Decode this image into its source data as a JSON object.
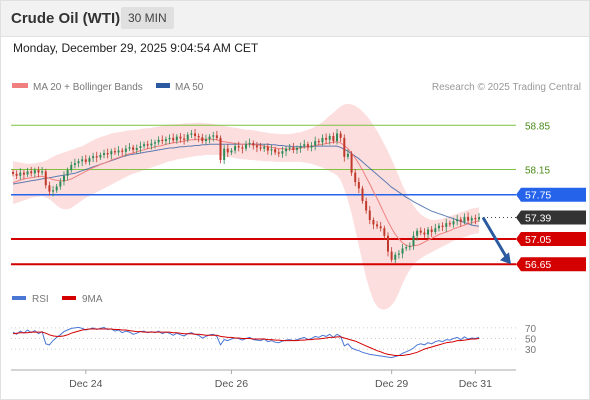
{
  "header": {
    "title": "Crude Oil (WTI)",
    "timeframe": "30 MIN",
    "datetime": "Monday, December 29, 2025 9:04:54 AM CET"
  },
  "legend": {
    "ma20": "MA 20 + Bollinger Bands",
    "ma50": "MA 50",
    "copyright": "Research © 2025 Trading Central",
    "rsi": "RSI",
    "rsi9": "9MA"
  },
  "colors": {
    "ma20": "#f08080",
    "ma50": "#2b5aa0",
    "bollinger_fill": "#fbd6d6",
    "up": "#2e8b57",
    "down": "#c0392b",
    "pivot": "#2563eb",
    "support": "#d40000",
    "resistance": "#7fc241",
    "rsi": "#4a77d4",
    "rsi_ma": "#d40000",
    "last_price": "#333333"
  },
  "chart_data": {
    "type": "candlestick",
    "x_ticks": [
      "Dec 24",
      "Dec 26",
      "Dec 29",
      "Dec 31"
    ],
    "price_levels": [
      {
        "value": 58.85,
        "label": "58.85",
        "kind": "resistance"
      },
      {
        "value": 58.15,
        "label": "58.15",
        "kind": "resistance"
      },
      {
        "value": 57.75,
        "label": "57.75",
        "kind": "pivot"
      },
      {
        "value": 57.39,
        "label": "57.39",
        "kind": "last"
      },
      {
        "value": 57.05,
        "label": "57.05",
        "kind": "support"
      },
      {
        "value": 56.65,
        "label": "56.65",
        "kind": "support"
      }
    ],
    "forecast_arrow": {
      "from": 57.39,
      "to": 56.65
    },
    "close": [
      58.08,
      58.05,
      58.1,
      58.07,
      58.12,
      58.09,
      58.14,
      58.1,
      58.12,
      57.9,
      57.8,
      57.82,
      57.88,
      57.96,
      58.05,
      58.14,
      58.22,
      58.25,
      58.28,
      58.31,
      58.27,
      58.33,
      58.36,
      58.34,
      58.38,
      58.41,
      58.39,
      58.44,
      58.42,
      58.45,
      58.43,
      58.48,
      58.5,
      58.46,
      58.49,
      58.52,
      58.55,
      58.53,
      58.56,
      58.58,
      58.62,
      58.6,
      58.63,
      58.65,
      58.61,
      58.67,
      58.64,
      58.62,
      58.7,
      58.72,
      58.68,
      58.66,
      58.6,
      58.63,
      58.67,
      58.69,
      58.65,
      58.3,
      58.48,
      58.42,
      58.45,
      58.52,
      58.5,
      58.48,
      58.55,
      58.57,
      58.53,
      58.5,
      58.48,
      58.51,
      58.45,
      58.47,
      58.42,
      58.4,
      58.44,
      58.48,
      58.5,
      58.46,
      58.49,
      58.52,
      58.55,
      58.5,
      58.53,
      58.6,
      58.58,
      58.65,
      58.62,
      58.68,
      58.6,
      58.72,
      58.65,
      58.35,
      58.4,
      58.1,
      57.95,
      57.85,
      57.65,
      57.5,
      57.35,
      57.28,
      57.25,
      57.22,
      57.1,
      56.85,
      56.72,
      56.8,
      56.82,
      56.9,
      56.92,
      56.94,
      57.1,
      57.18,
      57.15,
      57.12,
      57.2,
      57.16,
      57.22,
      57.26,
      57.24,
      57.3,
      57.28,
      57.33,
      57.36,
      57.32,
      57.4,
      57.34,
      57.38,
      57.36,
      57.39
    ],
    "ma20": [
      57.94,
      57.96,
      57.98,
      58.0,
      58.01,
      58.02,
      58.03,
      58.04,
      58.04,
      58.03,
      58.01,
      57.99,
      57.98,
      57.97,
      57.97,
      57.98,
      58.0,
      58.03,
      58.06,
      58.09,
      58.12,
      58.15,
      58.18,
      58.2,
      58.23,
      58.25,
      58.27,
      58.3,
      58.32,
      58.34,
      58.36,
      58.38,
      58.4,
      58.41,
      58.43,
      58.45,
      58.46,
      58.48,
      58.49,
      58.51,
      58.52,
      58.53,
      58.55,
      58.56,
      58.57,
      58.58,
      58.59,
      58.6,
      58.61,
      58.62,
      58.62,
      58.63,
      58.63,
      58.63,
      58.63,
      58.63,
      58.62,
      58.6,
      58.59,
      58.58,
      58.57,
      58.56,
      58.56,
      58.55,
      58.55,
      58.55,
      58.54,
      58.54,
      58.53,
      58.52,
      58.51,
      58.5,
      58.49,
      58.48,
      58.48,
      58.47,
      58.47,
      58.47,
      58.48,
      58.49,
      58.5,
      58.51,
      58.52,
      58.53,
      58.54,
      58.55,
      58.56,
      58.57,
      58.58,
      58.59,
      58.57,
      58.53,
      58.48,
      58.41,
      58.33,
      58.24,
      58.14,
      58.03,
      57.92,
      57.8,
      57.69,
      57.57,
      57.45,
      57.33,
      57.22,
      57.12,
      57.05,
      56.99,
      56.95,
      56.93,
      56.94,
      56.95,
      56.97,
      57.0,
      57.03,
      57.06,
      57.09,
      57.12,
      57.14,
      57.16,
      57.18,
      57.21,
      57.23,
      57.25,
      57.27,
      57.29,
      57.31,
      57.32,
      57.34
    ],
    "bb_upper": [
      58.28,
      58.27,
      58.26,
      58.25,
      58.24,
      58.24,
      58.25,
      58.26,
      58.27,
      58.29,
      58.32,
      58.35,
      58.38,
      58.4,
      58.42,
      58.44,
      58.46,
      58.48,
      58.5,
      58.52,
      58.55,
      58.58,
      58.61,
      58.64,
      58.66,
      58.68,
      58.7,
      58.72,
      58.73,
      58.74,
      58.75,
      58.76,
      58.77,
      58.77,
      58.78,
      58.79,
      58.8,
      58.8,
      58.81,
      58.82,
      58.83,
      58.84,
      58.85,
      58.86,
      58.86,
      58.87,
      58.87,
      58.88,
      58.88,
      58.88,
      58.89,
      58.89,
      58.89,
      58.88,
      58.88,
      58.87,
      58.86,
      58.85,
      58.84,
      58.83,
      58.82,
      58.81,
      58.8,
      58.79,
      58.78,
      58.78,
      58.77,
      58.76,
      58.75,
      58.74,
      58.73,
      58.72,
      58.72,
      58.71,
      58.71,
      58.71,
      58.71,
      58.72,
      58.73,
      58.74,
      58.76,
      58.78,
      58.8,
      58.83,
      58.86,
      58.9,
      58.95,
      59.0,
      59.05,
      59.1,
      59.15,
      59.18,
      59.19,
      59.18,
      59.16,
      59.12,
      59.07,
      59.01,
      58.94,
      58.85,
      58.76,
      58.66,
      58.55,
      58.44,
      58.31,
      58.18,
      58.04,
      57.9,
      57.78,
      57.67,
      57.58,
      57.5,
      57.44,
      57.4,
      57.37,
      57.35,
      57.35,
      57.36,
      57.37,
      57.39,
      57.41,
      57.43,
      57.45,
      57.47,
      57.49,
      57.51,
      57.53,
      57.54,
      57.55
    ],
    "bb_lower": [
      57.6,
      57.62,
      57.64,
      57.66,
      57.68,
      57.7,
      57.71,
      57.72,
      57.73,
      57.71,
      57.68,
      57.63,
      57.58,
      57.54,
      57.52,
      57.52,
      57.54,
      57.58,
      57.62,
      57.66,
      57.7,
      57.73,
      57.76,
      57.79,
      57.82,
      57.85,
      57.88,
      57.91,
      57.94,
      57.97,
      58.0,
      58.03,
      58.06,
      58.08,
      58.1,
      58.12,
      58.14,
      58.16,
      58.18,
      58.2,
      58.22,
      58.24,
      58.26,
      58.28,
      58.29,
      58.31,
      58.32,
      58.33,
      58.34,
      58.35,
      58.36,
      58.37,
      58.37,
      58.38,
      58.38,
      58.38,
      58.38,
      58.37,
      58.36,
      58.35,
      58.34,
      58.33,
      58.32,
      58.31,
      58.31,
      58.3,
      58.3,
      58.29,
      58.29,
      58.28,
      58.28,
      58.28,
      58.27,
      58.27,
      58.27,
      58.27,
      58.27,
      58.27,
      58.27,
      58.27,
      58.26,
      58.25,
      58.24,
      58.22,
      58.2,
      58.18,
      58.15,
      58.12,
      58.09,
      58.06,
      57.98,
      57.84,
      57.66,
      57.45,
      57.2,
      56.94,
      56.68,
      56.44,
      56.24,
      56.08,
      55.98,
      55.94,
      55.93,
      55.95,
      56.0,
      56.08,
      56.2,
      56.34,
      56.46,
      56.56,
      56.64,
      56.7,
      56.74,
      56.78,
      56.81,
      56.84,
      56.87,
      56.9,
      56.93,
      56.96,
      56.99,
      57.02,
      57.04,
      57.06,
      57.08,
      57.1,
      57.12,
      57.13,
      57.14
    ],
    "ma50": [
      57.92,
      57.93,
      57.94,
      57.95,
      57.96,
      57.97,
      57.98,
      57.99,
      58.0,
      58.01,
      58.02,
      58.03,
      58.04,
      58.05,
      58.06,
      58.07,
      58.08,
      58.09,
      58.11,
      58.13,
      58.15,
      58.17,
      58.19,
      58.21,
      58.23,
      58.25,
      58.27,
      58.29,
      58.31,
      58.33,
      58.35,
      58.37,
      58.38,
      58.39,
      58.4,
      58.41,
      58.42,
      58.43,
      58.44,
      58.45,
      58.46,
      58.47,
      58.48,
      58.49,
      58.49,
      58.5,
      58.51,
      58.51,
      58.52,
      58.52,
      58.53,
      58.53,
      58.54,
      58.54,
      58.55,
      58.55,
      58.55,
      58.55,
      58.55,
      58.55,
      58.55,
      58.55,
      58.55,
      58.55,
      58.55,
      58.55,
      58.55,
      58.55,
      58.55,
      58.55,
      58.55,
      58.54,
      58.54,
      58.53,
      58.53,
      58.52,
      58.52,
      58.51,
      58.51,
      58.51,
      58.51,
      58.51,
      58.51,
      58.52,
      58.52,
      58.52,
      58.52,
      58.52,
      58.52,
      58.52,
      58.5,
      58.47,
      58.44,
      58.4,
      58.36,
      58.32,
      58.27,
      58.22,
      58.17,
      58.12,
      58.07,
      58.02,
      57.97,
      57.92,
      57.87,
      57.83,
      57.79,
      57.75,
      57.71,
      57.68,
      57.64,
      57.61,
      57.58,
      57.55,
      57.52,
      57.49,
      57.47,
      57.45,
      57.43,
      57.41,
      57.39,
      57.37,
      57.35,
      57.33,
      57.31,
      57.29,
      57.27,
      57.26,
      57.25
    ],
    "rsi_axis": [
      70,
      50,
      30
    ],
    "rsi": [
      62,
      58,
      64,
      60,
      66,
      61,
      65,
      59,
      63,
      40,
      38,
      46,
      52,
      57,
      63,
      66,
      69,
      70,
      71,
      69,
      66,
      68,
      70,
      67,
      69,
      71,
      67,
      68,
      64,
      66,
      61,
      64,
      62,
      58,
      60,
      63,
      64,
      61,
      63,
      61,
      64,
      59,
      62,
      60,
      56,
      60,
      57,
      55,
      59,
      61,
      58,
      56,
      51,
      54,
      57,
      58,
      54,
      38,
      48,
      46,
      49,
      51,
      50,
      47,
      50,
      52,
      48,
      47,
      46,
      49,
      44,
      46,
      43,
      42,
      45,
      47,
      48,
      46,
      48,
      50,
      52,
      48,
      50,
      54,
      52,
      56,
      54,
      58,
      52,
      58,
      54,
      36,
      40,
      32,
      29,
      27,
      24,
      22,
      20,
      19,
      18,
      17,
      16,
      15,
      14,
      16,
      18,
      22,
      25,
      28,
      32,
      38,
      40,
      38,
      42,
      40,
      44,
      46,
      44,
      48,
      47,
      50,
      52,
      48,
      53,
      49,
      51,
      50,
      52
    ],
    "rsi_ma": [
      59,
      60,
      61,
      61,
      61,
      62,
      62,
      62,
      62,
      60,
      57,
      55,
      54,
      54,
      55,
      57,
      60,
      62,
      64,
      66,
      67,
      68,
      68,
      68,
      68,
      68,
      68,
      68,
      67,
      67,
      66,
      66,
      65,
      64,
      63,
      63,
      62,
      62,
      62,
      62,
      62,
      62,
      62,
      62,
      61,
      61,
      60,
      59,
      59,
      59,
      58,
      58,
      57,
      56,
      56,
      56,
      56,
      54,
      53,
      52,
      52,
      51,
      51,
      50,
      50,
      50,
      49,
      49,
      49,
      49,
      48,
      48,
      47,
      47,
      46,
      46,
      46,
      46,
      46,
      47,
      47,
      48,
      48,
      49,
      49,
      50,
      51,
      52,
      52,
      53,
      53,
      51,
      49,
      47,
      45,
      42,
      39,
      36,
      33,
      30,
      27,
      25,
      22,
      20,
      19,
      18,
      18,
      18,
      19,
      20,
      22,
      24,
      27,
      30,
      32,
      34,
      36,
      38,
      40,
      42,
      43,
      44,
      46,
      46,
      47,
      48,
      49,
      49,
      50
    ]
  }
}
